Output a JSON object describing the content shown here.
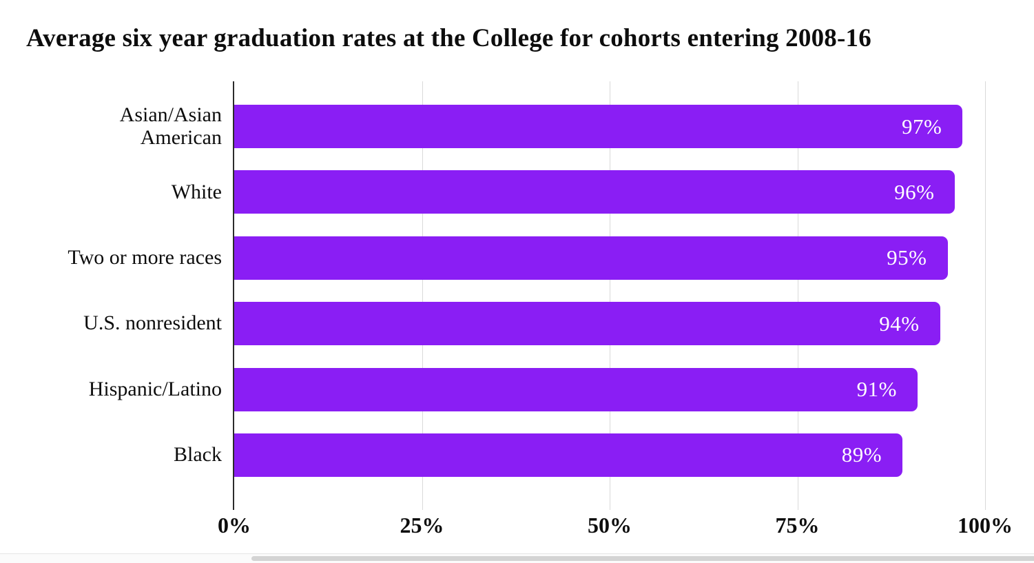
{
  "chart_data": {
    "type": "bar",
    "orientation": "horizontal",
    "title": "Average six year graduation rates at the College for cohorts entering 2008-16",
    "categories": [
      "Asian/Asian American",
      "White",
      "Two or more races",
      "U.S. nonresident",
      "Hispanic/Latino",
      "Black"
    ],
    "category_display": [
      "Asian/Asian\nAmerican",
      "White",
      "Two or more races",
      "U.S. nonresident",
      "Hispanic/Latino",
      "Black"
    ],
    "values": [
      97,
      96,
      95,
      94,
      91,
      89
    ],
    "value_labels": [
      "97%",
      "96%",
      "95%",
      "94%",
      "91%",
      "89%"
    ],
    "xlabel": "",
    "ylabel": "",
    "xlim": [
      0,
      100
    ],
    "x_ticks": [
      0,
      25,
      50,
      75,
      100
    ],
    "x_tick_labels": [
      "0%",
      "25%",
      "50%",
      "75%",
      "100%"
    ],
    "grid": "vertical gridlines at each x tick, drawn behind bars",
    "legend": "none",
    "colors": {
      "bar": "#8a1ef4",
      "value_label": "#ffffff",
      "title": "#0d0d0d",
      "category_label": "#0d0d0d",
      "tick_label": "#0d0d0d",
      "axis_line": "#2b2b2b",
      "gridline": "#d9d9d9",
      "background": "#ffffff"
    }
  }
}
